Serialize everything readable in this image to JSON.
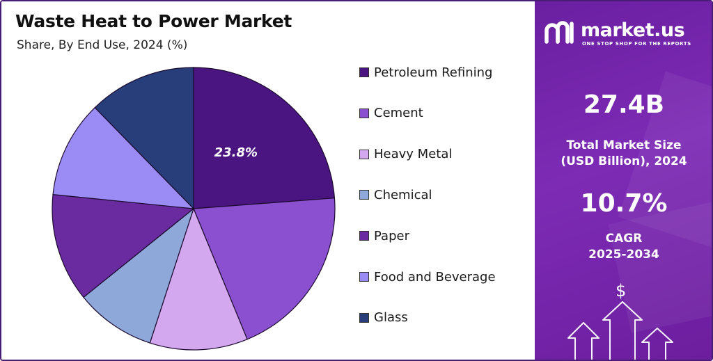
{
  "title": "Waste Heat to Power Market",
  "subtitle": "Share, By End Use, 2024 (%)",
  "chart_data": {
    "type": "pie",
    "categories": [
      "Petroleum Refining",
      "Cement",
      "Heavy Metal",
      "Chemical",
      "Paper",
      "Food and Beverage",
      "Glass"
    ],
    "values": [
      23.8,
      20.0,
      11.2,
      9.2,
      12.4,
      11.1,
      12.3
    ],
    "colors": [
      "#4a1580",
      "#8b50cf",
      "#d4a8ee",
      "#8fa8da",
      "#6a2aa0",
      "#9b8cf5",
      "#283e7a"
    ],
    "data_labels": [
      {
        "category": "Petroleum Refining",
        "text": "23.8%"
      }
    ],
    "legend": {
      "position": "right",
      "items": [
        {
          "label": "Petroleum Refining",
          "color": "#4a1580"
        },
        {
          "label": "Cement",
          "color": "#8b50cf"
        },
        {
          "label": "Heavy Metal",
          "color": "#d4a8ee"
        },
        {
          "label": "Chemical",
          "color": "#8fa8da"
        },
        {
          "label": "Paper",
          "color": "#6a2aa0"
        },
        {
          "label": "Food and Beverage",
          "color": "#9b8cf5"
        },
        {
          "label": "Glass",
          "color": "#283e7a"
        }
      ]
    }
  },
  "brand": {
    "name": "market.us",
    "tagline": "ONE STOP SHOP FOR THE REPORTS",
    "logo_icon": "market-us-logo-icon"
  },
  "stats": {
    "market_size_value": "27.4B",
    "market_size_label_line1": "Total Market Size",
    "market_size_label_line2": "(USD Billion), 2024",
    "cagr_value": "10.7%",
    "cagr_label_line1": "CAGR",
    "cagr_label_line2": "2025-2034"
  },
  "decor": {
    "currency_symbol": "$",
    "arrows_icon": "growth-arrows-icon"
  },
  "colors": {
    "panel": "#7226a8",
    "frame": "#4a1c7a"
  }
}
